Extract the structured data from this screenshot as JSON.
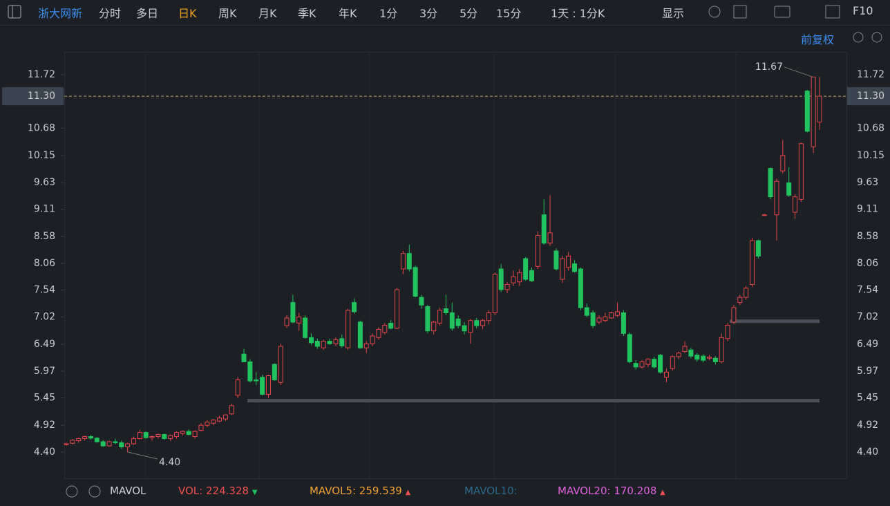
{
  "toolbar": {
    "stock": "浙大网新",
    "periods": [
      "分时",
      "多日",
      "日K",
      "周K",
      "月K",
      "季K",
      "年K",
      "1分",
      "3分",
      "5分",
      "15分"
    ],
    "range": "1天 : 1分K",
    "display": "显示",
    "f10": "F10"
  },
  "adjust": "前复权",
  "indicator": {
    "name": "MAVOL",
    "vol_label": "VOL:",
    "vol": 224.328,
    "ma5_label": "MAVOL5:",
    "ma5": 259.539,
    "ma10_label": "MAVOL10:",
    "ma20_label": "MAVOL20:",
    "ma20": 170.208
  },
  "chart_data": {
    "type": "candlestick",
    "up_color": "#e9474b",
    "down_color": "#21c35e",
    "ylim": [
      3.89,
      12.16
    ],
    "yticks": [
      {
        "value": 4.4,
        "label": "4.40"
      },
      4.92,
      5.45,
      5.97,
      6.49,
      7.02,
      7.54,
      8.06,
      8.58,
      9.11,
      9.63,
      10.15,
      10.68,
      11.72
    ],
    "last_price": {
      "value": 11.3,
      "label": "11.30"
    },
    "max_label": 11.67,
    "min_label": {
      "value": 4.4,
      "label": "4.40"
    },
    "levels": [
      5.39,
      6.93
    ],
    "ohlc": [
      [
        4.55,
        4.58,
        4.52,
        4.56
      ],
      [
        4.57,
        4.65,
        4.55,
        4.63
      ],
      [
        4.62,
        4.68,
        4.58,
        4.66
      ],
      [
        4.66,
        4.72,
        4.62,
        4.7
      ],
      [
        4.7,
        4.73,
        4.64,
        4.67
      ],
      [
        4.67,
        4.69,
        4.58,
        4.6
      ],
      [
        4.6,
        4.63,
        4.5,
        4.52
      ],
      [
        4.52,
        4.62,
        4.5,
        4.6
      ],
      [
        4.6,
        4.66,
        4.55,
        4.58
      ],
      [
        4.58,
        4.62,
        4.46,
        4.5
      ],
      [
        4.5,
        4.58,
        4.4,
        4.56
      ],
      [
        4.56,
        4.7,
        4.54,
        4.66
      ],
      [
        4.66,
        4.83,
        4.64,
        4.78
      ],
      [
        4.78,
        4.8,
        4.66,
        4.68
      ],
      [
        4.68,
        4.72,
        4.62,
        4.7
      ],
      [
        4.7,
        4.76,
        4.66,
        4.74
      ],
      [
        4.74,
        4.76,
        4.64,
        4.66
      ],
      [
        4.66,
        4.74,
        4.62,
        4.72
      ],
      [
        4.7,
        4.8,
        4.66,
        4.78
      ],
      [
        4.76,
        4.82,
        4.72,
        4.8
      ],
      [
        4.8,
        4.84,
        4.72,
        4.74
      ],
      [
        4.7,
        4.82,
        4.66,
        4.8
      ],
      [
        4.82,
        4.96,
        4.8,
        4.92
      ],
      [
        4.92,
        5.02,
        4.88,
        4.98
      ],
      [
        4.96,
        5.04,
        4.92,
        5.02
      ],
      [
        5.0,
        5.1,
        4.98,
        5.06
      ],
      [
        5.04,
        5.14,
        5.0,
        5.12
      ],
      [
        5.14,
        5.34,
        5.12,
        5.3
      ],
      [
        5.5,
        5.85,
        5.45,
        5.8
      ],
      [
        6.3,
        6.4,
        6.15,
        6.15
      ],
      [
        6.15,
        6.2,
        5.75,
        5.78
      ],
      [
        5.8,
        5.95,
        5.7,
        5.78
      ],
      [
        5.85,
        5.9,
        5.5,
        5.52
      ],
      [
        5.52,
        5.9,
        5.45,
        5.88
      ],
      [
        6.1,
        6.12,
        5.78,
        5.8
      ],
      [
        5.75,
        6.5,
        5.7,
        6.45
      ],
      [
        6.85,
        7.05,
        6.8,
        7.0
      ],
      [
        7.3,
        7.45,
        6.9,
        6.92
      ],
      [
        6.9,
        7.1,
        6.75,
        7.02
      ],
      [
        7.0,
        7.05,
        6.6,
        6.62
      ],
      [
        6.62,
        6.7,
        6.48,
        6.52
      ],
      [
        6.55,
        6.6,
        6.4,
        6.45
      ],
      [
        6.42,
        6.58,
        6.38,
        6.55
      ],
      [
        6.55,
        6.6,
        6.48,
        6.5
      ],
      [
        6.5,
        6.62,
        6.46,
        6.58
      ],
      [
        6.6,
        6.68,
        6.42,
        6.46
      ],
      [
        6.42,
        7.18,
        6.38,
        7.15
      ],
      [
        7.3,
        7.38,
        7.08,
        7.12
      ],
      [
        6.92,
        6.95,
        6.4,
        6.42
      ],
      [
        6.42,
        6.55,
        6.32,
        6.5
      ],
      [
        6.5,
        6.7,
        6.45,
        6.65
      ],
      [
        6.62,
        6.82,
        6.58,
        6.78
      ],
      [
        6.72,
        6.9,
        6.68,
        6.86
      ],
      [
        6.9,
        6.96,
        6.78,
        6.8
      ],
      [
        6.8,
        7.58,
        6.78,
        7.55
      ],
      [
        7.95,
        8.3,
        7.85,
        8.25
      ],
      [
        8.25,
        8.42,
        7.9,
        7.95
      ],
      [
        7.98,
        8.02,
        7.4,
        7.42
      ],
      [
        7.4,
        7.45,
        7.18,
        7.25
      ],
      [
        7.22,
        7.25,
        6.7,
        6.75
      ],
      [
        6.75,
        6.95,
        6.68,
        6.92
      ],
      [
        6.9,
        7.2,
        6.85,
        7.15
      ],
      [
        7.18,
        7.45,
        7.05,
        7.1
      ],
      [
        7.1,
        7.3,
        6.75,
        6.8
      ],
      [
        6.98,
        7.05,
        6.8,
        6.85
      ],
      [
        6.85,
        6.92,
        6.68,
        6.75
      ],
      [
        6.72,
        6.98,
        6.5,
        6.95
      ],
      [
        6.95,
        7.0,
        6.8,
        6.85
      ],
      [
        6.85,
        6.98,
        6.78,
        6.95
      ],
      [
        6.95,
        7.15,
        6.88,
        7.1
      ],
      [
        7.1,
        7.88,
        7.05,
        7.85
      ],
      [
        7.95,
        8.05,
        7.5,
        7.55
      ],
      [
        7.55,
        7.7,
        7.48,
        7.65
      ],
      [
        7.68,
        7.92,
        7.62,
        7.8
      ],
      [
        7.7,
        7.95,
        7.62,
        7.88
      ],
      [
        8.15,
        8.18,
        7.72,
        7.75
      ],
      [
        7.92,
        7.98,
        7.7,
        7.72
      ],
      [
        8.0,
        8.68,
        7.95,
        8.6
      ],
      [
        9.0,
        9.3,
        8.42,
        8.45
      ],
      [
        8.45,
        9.38,
        8.4,
        8.65
      ],
      [
        8.3,
        8.35,
        7.92,
        7.95
      ],
      [
        7.75,
        8.2,
        7.68,
        8.15
      ],
      [
        7.98,
        8.28,
        7.92,
        8.2
      ],
      [
        8.05,
        8.12,
        7.88,
        7.9
      ],
      [
        7.95,
        7.98,
        7.15,
        7.2
      ],
      [
        7.2,
        7.28,
        7.02,
        7.05
      ],
      [
        7.1,
        7.15,
        6.8,
        6.85
      ],
      [
        6.92,
        7.05,
        6.88,
        7.0
      ],
      [
        6.95,
        7.1,
        6.92,
        7.02
      ],
      [
        7.0,
        7.12,
        6.98,
        7.1
      ],
      [
        7.05,
        7.3,
        7.02,
        7.12
      ],
      [
        7.1,
        7.15,
        6.65,
        6.7
      ],
      [
        6.68,
        6.72,
        6.12,
        6.15
      ],
      [
        6.12,
        6.18,
        6.0,
        6.05
      ],
      [
        6.05,
        6.18,
        6.02,
        6.15
      ],
      [
        6.1,
        6.22,
        6.05,
        6.2
      ],
      [
        6.2,
        6.25,
        6.02,
        6.05
      ],
      [
        6.28,
        6.3,
        5.92,
        5.95
      ],
      [
        5.85,
        6.02,
        5.75,
        5.95
      ],
      [
        6.02,
        6.28,
        5.98,
        6.25
      ],
      [
        6.25,
        6.35,
        6.2,
        6.32
      ],
      [
        6.35,
        6.55,
        6.32,
        6.45
      ],
      [
        6.38,
        6.42,
        6.22,
        6.26
      ],
      [
        6.28,
        6.32,
        6.15,
        6.2
      ],
      [
        6.26,
        6.3,
        6.14,
        6.18
      ],
      [
        6.22,
        6.28,
        6.18,
        6.24
      ],
      [
        6.22,
        6.26,
        6.1,
        6.15
      ],
      [
        6.15,
        6.7,
        6.12,
        6.62
      ],
      [
        6.6,
        6.9,
        6.55,
        6.86
      ],
      [
        6.92,
        7.25,
        6.88,
        7.2
      ],
      [
        7.3,
        7.45,
        7.25,
        7.4
      ],
      [
        7.4,
        7.62,
        7.35,
        7.58
      ],
      [
        7.65,
        8.55,
        7.6,
        8.5
      ],
      [
        8.5,
        8.52,
        8.15,
        8.2
      ],
      [
        9.0,
        9.02,
        8.98,
        9.0
      ],
      [
        9.9,
        9.92,
        9.3,
        9.35
      ],
      [
        9.0,
        9.7,
        8.5,
        9.65
      ],
      [
        9.85,
        10.45,
        9.8,
        10.15
      ],
      [
        9.62,
        9.92,
        9.35,
        9.38
      ],
      [
        9.05,
        9.4,
        8.92,
        9.35
      ],
      [
        9.3,
        10.4,
        9.25,
        10.38
      ],
      [
        11.4,
        11.42,
        10.6,
        10.62
      ],
      [
        10.32,
        11.67,
        10.2,
        11.67
      ],
      [
        10.8,
        11.67,
        10.65,
        11.3
      ]
    ]
  }
}
